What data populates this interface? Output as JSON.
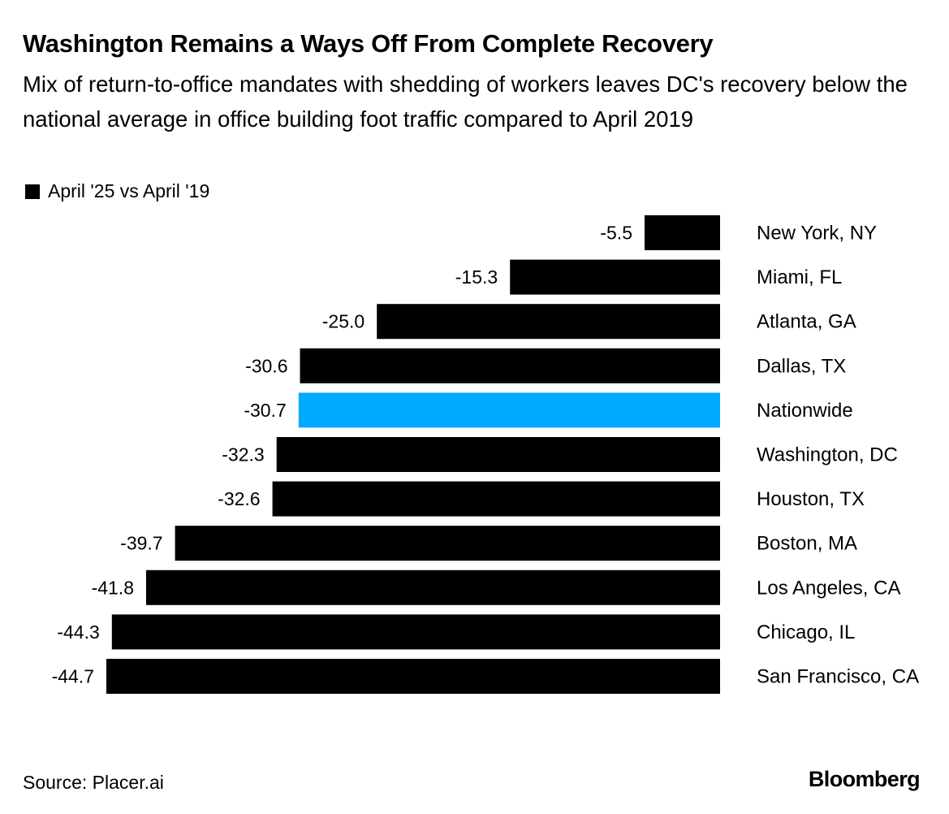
{
  "chart_data": {
    "type": "bar",
    "orientation": "horizontal",
    "title": "Washington Remains a Ways Off From Complete Recovery",
    "subtitle": "Mix of return-to-office mandates with shedding of workers leaves DC's recovery below the national average in office building foot traffic compared to April 2019",
    "legend": [
      {
        "name": "April '25 vs April '19",
        "color": "#000000"
      }
    ],
    "categories": [
      "New York, NY",
      "Miami, FL",
      "Atlanta, GA",
      "Dallas, TX",
      "Nationwide",
      "Washington, DC",
      "Houston, TX",
      "Boston, MA",
      "Los Angeles, CA",
      "Chicago, IL",
      "San Francisco, CA"
    ],
    "series": [
      {
        "name": "April '25 vs April '19",
        "values": [
          -5.5,
          -15.3,
          -25.0,
          -30.6,
          -30.7,
          -32.3,
          -32.6,
          -39.7,
          -41.8,
          -44.3,
          -44.7
        ]
      }
    ],
    "highlight": {
      "category": "Nationwide",
      "color": "#00aaff"
    },
    "bar_color": "#000000",
    "value_labels": [
      "-5.5",
      "-15.3",
      "-25.0",
      "-30.6",
      "-30.7",
      "-32.3",
      "-32.6",
      "-39.7",
      "-41.8",
      "-44.3",
      "-44.7"
    ],
    "xlim": [
      -44.7,
      0
    ],
    "grid": false,
    "legend_position": "top-left"
  },
  "footer": {
    "source": "Source: Placer.ai",
    "brand": "Bloomberg"
  }
}
